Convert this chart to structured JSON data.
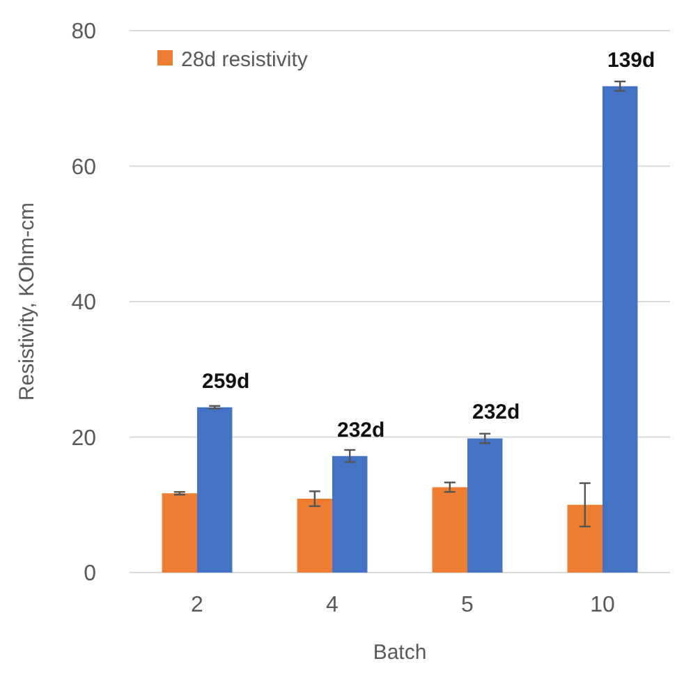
{
  "chart_data": {
    "type": "bar",
    "xlabel": "Batch",
    "ylabel": "Resistivity, KOhm-cm",
    "categories": [
      "2",
      "4",
      "5",
      "10"
    ],
    "series": [
      {
        "name": "28d resistivity",
        "color": "#ed7d31",
        "values": [
          11.7,
          10.9,
          12.6,
          10.0
        ],
        "errors": [
          0.2,
          1.1,
          0.7,
          3.2
        ]
      },
      {
        "color": "#4472c4",
        "values": [
          24.4,
          17.2,
          19.8,
          71.8
        ],
        "errors": [
          0.2,
          0.9,
          0.7,
          0.7
        ]
      }
    ],
    "annotations": [
      {
        "text": "259d",
        "x": "2",
        "y": 24.4
      },
      {
        "text": "232d",
        "x": "4",
        "y": 17.2
      },
      {
        "text": "232d",
        "x": "5",
        "y": 19.8
      },
      {
        "text": "139d",
        "x": "10",
        "y": 71.8
      }
    ],
    "ylim": [
      0,
      80
    ],
    "yticks": [
      0,
      20,
      40,
      60,
      80
    ],
    "grid": "y",
    "legend": "top left"
  }
}
